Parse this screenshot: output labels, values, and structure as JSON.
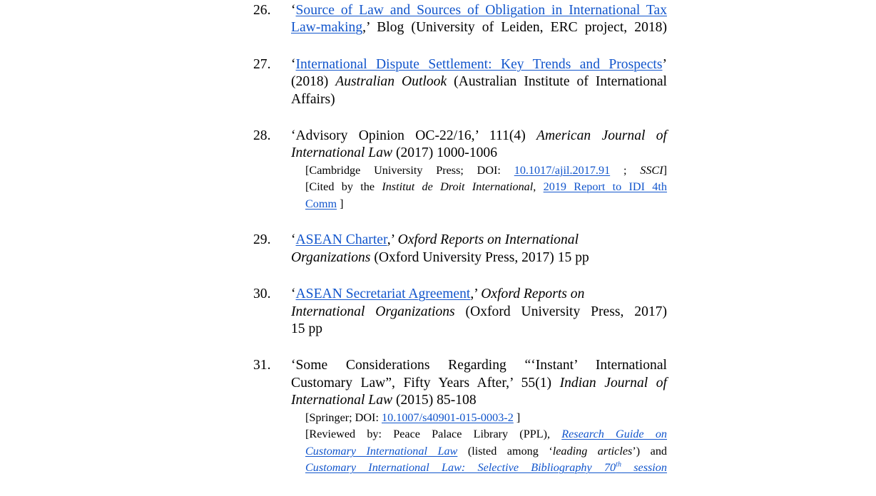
{
  "page": {
    "background": "#ffffff",
    "text_color": "#000000",
    "link_color": "#1155CC"
  },
  "entries": [
    {
      "number": "26.",
      "lines": [
        {
          "justify": true,
          "note": false,
          "runs": [
            {
              "t": "‘",
              "s": "p"
            },
            {
              "t": "Source of Law and Sources of Obligation in International Tax",
              "s": "l"
            }
          ]
        },
        {
          "justify": true,
          "note": false,
          "runs": [
            {
              "t": "Law-making",
              "s": "l"
            },
            {
              "t": ",’ Blog (University of Leiden, ERC project, 2018)",
              "s": "p"
            }
          ]
        }
      ]
    },
    {
      "number": "27.",
      "lines": [
        {
          "justify": true,
          "note": false,
          "runs": [
            {
              "t": "‘",
              "s": "p"
            },
            {
              "t": "International Dispute Settlement: Key Trends and Prospects",
              "s": "l"
            },
            {
              "t": "’",
              "s": "p"
            }
          ]
        },
        {
          "justify": true,
          "note": false,
          "runs": [
            {
              "t": "(2018) ",
              "s": "p"
            },
            {
              "t": "Australian Outlook",
              "s": "i"
            },
            {
              "t": " (Australian Institute of International",
              "s": "p"
            }
          ]
        },
        {
          "justify": false,
          "note": false,
          "runs": [
            {
              "t": "Affairs)",
              "s": "p"
            }
          ]
        }
      ]
    },
    {
      "number": "28.",
      "lines": [
        {
          "justify": true,
          "note": false,
          "runs": [
            {
              "t": "‘Advisory Opinion OC-22/16,’ 111(4) ",
              "s": "p"
            },
            {
              "t": "American Journal of",
              "s": "i"
            }
          ]
        },
        {
          "justify": false,
          "note": false,
          "runs": [
            {
              "t": "International Law",
              "s": "i"
            },
            {
              "t": " (2017) 1000-1006",
              "s": "p"
            }
          ]
        },
        {
          "justify": true,
          "note": true,
          "runs": [
            {
              "t": "[Cambridge University Press; DOI: ",
              "s": "p"
            },
            {
              "t": "10.1017/ajil.2017.91",
              "s": "l"
            },
            {
              "t": " ; ",
              "s": "p"
            },
            {
              "t": "SSCI",
              "s": "i"
            },
            {
              "t": "]",
              "s": "p"
            }
          ]
        },
        {
          "justify": true,
          "note": true,
          "runs": [
            {
              "t": "[Cited by the ",
              "s": "p"
            },
            {
              "t": "Institut de Droit International",
              "s": "i"
            },
            {
              "t": ", ",
              "s": "p"
            },
            {
              "t": "2019 Report to IDI 4th",
              "s": "l"
            }
          ]
        },
        {
          "justify": false,
          "note": true,
          "runs": [
            {
              "t": "Comm",
              "s": "l"
            },
            {
              "t": " ]",
              "s": "p"
            }
          ]
        }
      ]
    },
    {
      "number": "29.",
      "lines": [
        {
          "justify": false,
          "note": false,
          "runs": [
            {
              "t": "‘",
              "s": "p"
            },
            {
              "t": "ASEAN Charter",
              "s": "l"
            },
            {
              "t": ",’ ",
              "s": "p"
            },
            {
              "t": "Oxford Reports on International",
              "s": "i"
            }
          ]
        },
        {
          "justify": false,
          "note": false,
          "runs": [
            {
              "t": "Organizations",
              "s": "i"
            },
            {
              "t": " (Oxford University Press, 2017) 15 pp",
              "s": "p"
            }
          ]
        }
      ]
    },
    {
      "number": "30.",
      "lines": [
        {
          "justify": false,
          "note": false,
          "runs": [
            {
              "t": "‘",
              "s": "p"
            },
            {
              "t": "ASEAN Secretariat Agreement",
              "s": "l"
            },
            {
              "t": ",’ ",
              "s": "p"
            },
            {
              "t": "Oxford Reports on",
              "s": "i"
            }
          ]
        },
        {
          "justify": true,
          "note": false,
          "runs": [
            {
              "t": "International Organizations",
              "s": "i"
            },
            {
              "t": " (Oxford University Press, 2017)",
              "s": "p"
            }
          ]
        },
        {
          "justify": false,
          "note": false,
          "runs": [
            {
              "t": "15 pp",
              "s": "p"
            }
          ]
        }
      ]
    },
    {
      "number": "31.",
      "lines": [
        {
          "justify": true,
          "note": false,
          "runs": [
            {
              "t": "‘Some Considerations Regarding “‘Instant’ International",
              "s": "p"
            }
          ]
        },
        {
          "justify": true,
          "note": false,
          "runs": [
            {
              "t": "Customary Law”, Fifty Years After,’ 55(1) ",
              "s": "p"
            },
            {
              "t": "Indian Journal of",
              "s": "i"
            }
          ]
        },
        {
          "justify": false,
          "note": false,
          "runs": [
            {
              "t": "International Law",
              "s": "i"
            },
            {
              "t": " (2015) 85-108",
              "s": "p"
            }
          ]
        },
        {
          "justify": false,
          "note": true,
          "runs": [
            {
              "t": "[Springer; DOI: ",
              "s": "p"
            },
            {
              "t": "10.1007/s40901-015-0003-2",
              "s": "l"
            },
            {
              "t": " ]",
              "s": "p"
            }
          ]
        },
        {
          "justify": true,
          "note": true,
          "runs": [
            {
              "t": "[Reviewed by: Peace Palace Library (PPL), ",
              "s": "p"
            },
            {
              "t": "Research Guide on",
              "s": "il"
            }
          ]
        },
        {
          "justify": true,
          "note": true,
          "runs": [
            {
              "t": "Customary International Law",
              "s": "il"
            },
            {
              "t": " (listed among ‘",
              "s": "p"
            },
            {
              "t": "leading articles",
              "s": "i"
            },
            {
              "t": "’) and",
              "s": "p"
            }
          ]
        },
        {
          "justify": true,
          "note": true,
          "runs": [
            {
              "t": "Customary International Law: Selective Bibliography 70",
              "s": "il"
            },
            {
              "t": "th",
              "s": "ils"
            },
            {
              "t": " session",
              "s": "il"
            }
          ]
        }
      ]
    }
  ]
}
